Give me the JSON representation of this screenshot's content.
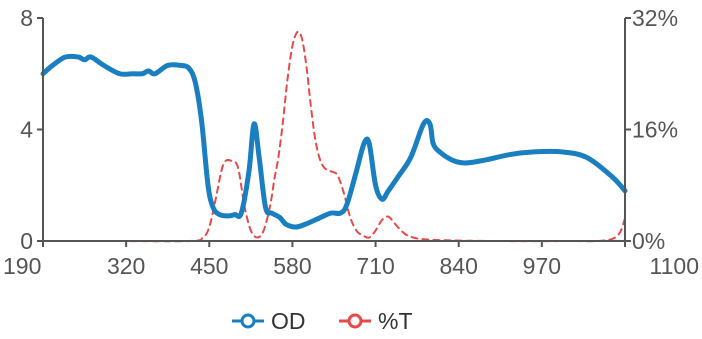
{
  "chart_data": {
    "type": "line",
    "x_ticks": [
      "190",
      "320",
      "450",
      "580",
      "710",
      "840",
      "970",
      "1100"
    ],
    "y_left_ticks": [
      "0",
      "4",
      "8"
    ],
    "y_right_ticks": [
      "0%",
      "16%",
      "32%"
    ],
    "xlim": [
      190,
      1100
    ],
    "ylim_left": [
      0,
      8
    ],
    "ylim_right": [
      0,
      32
    ],
    "series": [
      {
        "name": "OD",
        "axis": "left",
        "color": "#1a7fc1",
        "style": "solid",
        "x": [
          190,
          205,
          225,
          245,
          255,
          265,
          285,
          310,
          330,
          345,
          355,
          365,
          385,
          405,
          418,
          428,
          438,
          448,
          456,
          466,
          480,
          490,
          500,
          512,
          520,
          528,
          538,
          548,
          560,
          570,
          585,
          600,
          620,
          640,
          655,
          665,
          680,
          692,
          700,
          710,
          720,
          730,
          745,
          765,
          785,
          795,
          800,
          810,
          830,
          850,
          880,
          920,
          960,
          1000,
          1040,
          1080,
          1100
        ],
        "y": [
          6.0,
          6.3,
          6.6,
          6.6,
          6.5,
          6.6,
          6.3,
          6.0,
          6.0,
          6.0,
          6.1,
          6.0,
          6.3,
          6.3,
          6.2,
          5.7,
          4.3,
          2.0,
          1.2,
          0.95,
          0.9,
          0.95,
          1.0,
          2.5,
          4.2,
          3.0,
          1.2,
          1.0,
          0.85,
          0.6,
          0.5,
          0.6,
          0.8,
          1.0,
          1.0,
          1.3,
          2.5,
          3.5,
          3.5,
          2.0,
          1.5,
          1.8,
          2.3,
          3.0,
          4.2,
          4.2,
          3.5,
          3.2,
          2.9,
          2.8,
          2.9,
          3.1,
          3.2,
          3.2,
          3.0,
          2.3,
          1.8
        ]
      },
      {
        "name": "%T",
        "axis": "right",
        "color": "#e84a4a",
        "style": "dashed",
        "x": [
          190,
          300,
          420,
          440,
          450,
          460,
          472,
          485,
          495,
          505,
          515,
          525,
          535,
          545,
          552,
          558,
          565,
          572,
          580,
          588,
          595,
          602,
          608,
          615,
          622,
          630,
          640,
          650,
          660,
          670,
          680,
          690,
          700,
          710,
          720,
          730,
          740,
          750,
          760,
          780,
          820,
          900,
          1000,
          1080,
          1100
        ],
        "y": [
          0,
          0,
          0,
          0.5,
          2,
          6,
          11,
          11.5,
          10.5,
          5,
          1.5,
          0.5,
          1.5,
          5,
          9,
          12,
          17,
          23,
          28,
          30,
          29,
          25,
          20,
          15,
          12,
          10.5,
          10,
          9.5,
          7,
          3.5,
          1.5,
          0.8,
          0.5,
          1.5,
          3,
          3.5,
          2.5,
          1.5,
          0.8,
          0.3,
          0.1,
          0,
          0,
          0.3,
          3.2
        ]
      }
    ],
    "legend": {
      "position": "bottom",
      "items": [
        "OD",
        "%T"
      ]
    },
    "grid": false
  }
}
